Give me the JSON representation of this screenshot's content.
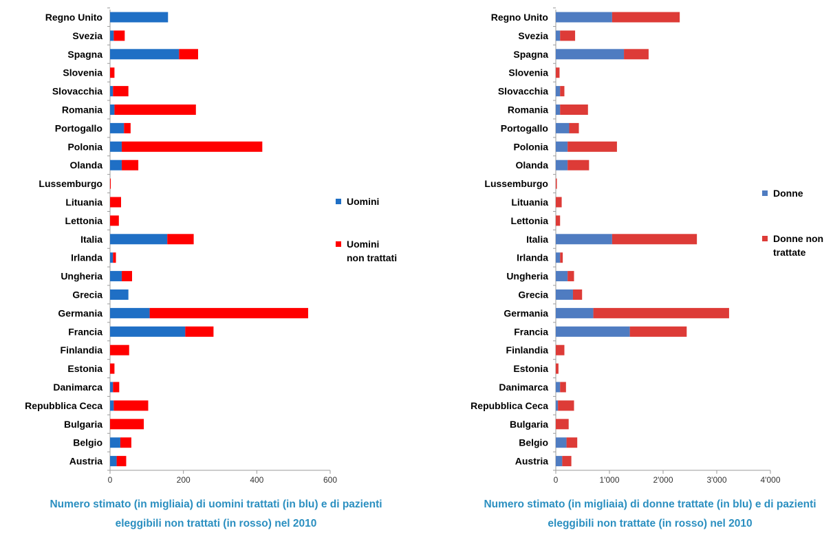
{
  "chart_data": [
    {
      "type": "bar",
      "orientation": "horizontal",
      "stacked": true,
      "categories": [
        "Regno Unito",
        "Svezia",
        "Spagna",
        "Slovenia",
        "Slovacchia",
        "Romania",
        "Portogallo",
        "Polonia",
        "Olanda",
        "Lussemburgo",
        "Lituania",
        "Lettonia",
        "Italia",
        "Irlanda",
        "Ungheria",
        "Grecia",
        "Germania",
        "Francia",
        "Finlandia",
        "Estonia",
        "Danimarca",
        "Repubblica Ceca",
        "Bulgaria",
        "Belgio",
        "Austria"
      ],
      "series": [
        {
          "name": "Uomini",
          "color": "#1f6fc5",
          "values": [
            158,
            10,
            188,
            0,
            8,
            12,
            38,
            32,
            32,
            0,
            0,
            0,
            156,
            8,
            32,
            50,
            108,
            205,
            0,
            0,
            8,
            10,
            0,
            28,
            18
          ]
        },
        {
          "name": "Uomini non trattati",
          "color": "#ff0000",
          "values": [
            0,
            30,
            52,
            12,
            42,
            222,
            18,
            383,
            45,
            1,
            30,
            24,
            72,
            8,
            28,
            0,
            432,
            77,
            52,
            12,
            17,
            94,
            92,
            30,
            26
          ]
        }
      ],
      "xlim": [
        0,
        600
      ],
      "xticks": [
        "0",
        "200",
        "400",
        "600"
      ],
      "legend_position": "right",
      "caption": [
        "Numero stimato (in migliaia) di uomini trattati (in blu) e di pazienti",
        "eleggibili non trattati (in rosso) nel 2010"
      ]
    },
    {
      "type": "bar",
      "orientation": "horizontal",
      "stacked": true,
      "categories": [
        "Regno Unito",
        "Svezia",
        "Spagna",
        "Slovenia",
        "Slovacchia",
        "Romania",
        "Portogallo",
        "Polonia",
        "Olanda",
        "Lussemburgo",
        "Lituania",
        "Lettonia",
        "Italia",
        "Irlanda",
        "Ungheria",
        "Grecia",
        "Germania",
        "Francia",
        "Finlandia",
        "Estonia",
        "Danimarca",
        "Repubblica Ceca",
        "Bulgaria",
        "Belgio",
        "Austria"
      ],
      "series": [
        {
          "name": "Donne",
          "color": "#4f7cc1",
          "values": [
            1050,
            80,
            1270,
            0,
            80,
            80,
            250,
            220,
            220,
            0,
            0,
            0,
            1050,
            80,
            220,
            320,
            700,
            1380,
            0,
            0,
            80,
            40,
            0,
            200,
            120
          ]
        },
        {
          "name": "Donne non trattate",
          "color": "#dd3b37",
          "values": [
            1260,
            280,
            460,
            70,
            80,
            520,
            180,
            920,
            400,
            20,
            110,
            80,
            1580,
            50,
            120,
            170,
            2530,
            1060,
            160,
            50,
            110,
            300,
            240,
            200,
            170
          ]
        }
      ],
      "xlim": [
        0,
        4000
      ],
      "xticks": [
        "0",
        "1'000",
        "2'000",
        "3'000",
        "4'000"
      ],
      "legend_position": "right",
      "caption": [
        "Numero stimato (in migliaia) di donne trattate (in blu) e di pazienti",
        "eleggibili non trattate (in rosso) nel 2010"
      ]
    }
  ]
}
